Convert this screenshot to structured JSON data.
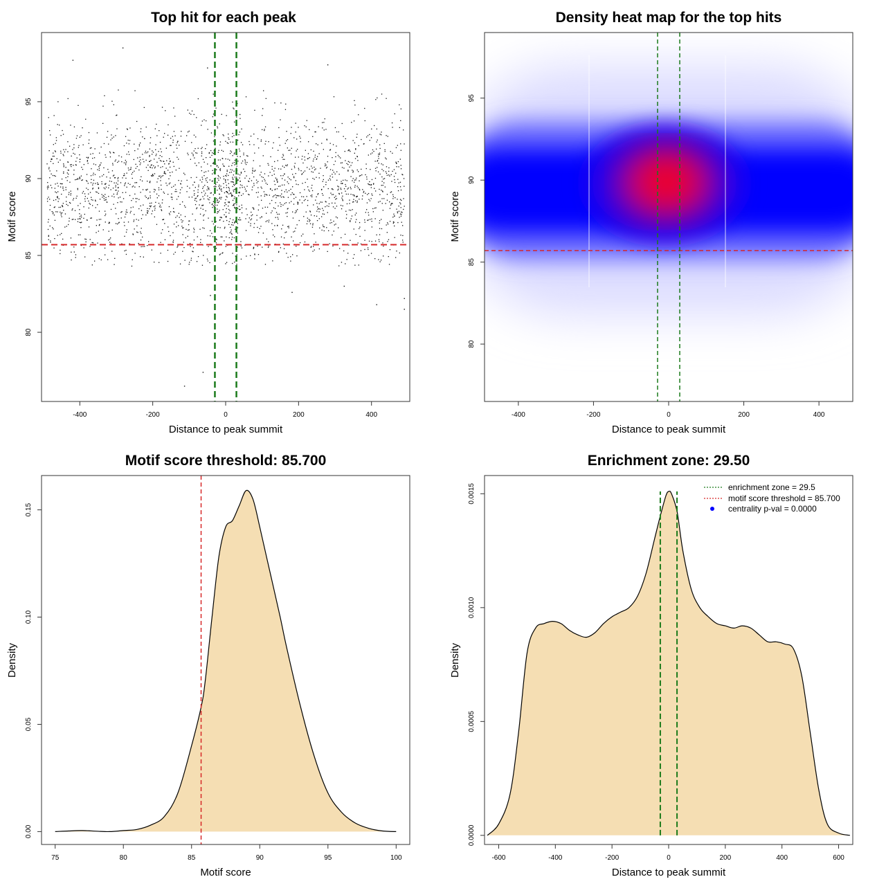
{
  "chart_data": [
    {
      "type": "scatter",
      "title": "Top hit for each peak",
      "xlabel": "Distance to peak summit",
      "ylabel": "Motif score",
      "xlim": [
        -505,
        505
      ],
      "ylim": [
        75.5,
        99.5
      ],
      "xticks": [
        -400,
        -200,
        0,
        200,
        400
      ],
      "yticks": [
        80,
        85,
        90,
        95
      ],
      "n_points": 2400,
      "x_range": [
        -490,
        490
      ],
      "y_center": 89.2,
      "y_spread": 2.4,
      "outliers": [
        [
          -113,
          76.5
        ],
        [
          -62,
          77.4
        ],
        [
          -42,
          82.4
        ],
        [
          -282,
          98.5
        ],
        [
          -419,
          97.7
        ],
        [
          -50,
          97.2
        ],
        [
          280,
          97.4
        ],
        [
          414,
          81.8
        ],
        [
          490,
          81.5
        ],
        [
          490,
          82.2
        ],
        [
          182,
          82.6
        ],
        [
          325,
          83.0
        ]
      ],
      "threshold_line": {
        "y": 85.7,
        "color": "#d62728"
      },
      "zone_lines": {
        "x": [
          -29.5,
          29.5
        ],
        "color": "#1a7a1a"
      }
    },
    {
      "type": "heatmap",
      "title": "Density heat map for the top hits",
      "xlabel": "Distance to peak summit",
      "ylabel": "Motif score",
      "xlim": [
        -490,
        490
      ],
      "ylim": [
        76.5,
        99
      ],
      "xticks": [
        -400,
        -200,
        0,
        200,
        400
      ],
      "yticks": [
        80,
        85,
        90,
        95
      ],
      "colors": {
        "low": "#ffffff",
        "mid": "#0000ff",
        "high": "#ff0000"
      },
      "hotspot": {
        "x": 0,
        "y": 89.6
      },
      "threshold_line": {
        "y": 85.7,
        "color": "#d62728"
      },
      "zone_lines": {
        "x": [
          -29.5,
          29.5
        ],
        "color": "#1a7a1a"
      }
    },
    {
      "type": "area",
      "title": "Motif score threshold: 85.700",
      "xlabel": "Motif score",
      "ylabel": "Density",
      "xlim": [
        74,
        101
      ],
      "ylim": [
        -0.006,
        0.166
      ],
      "xticks": [
        75,
        80,
        85,
        90,
        95,
        100
      ],
      "yticks": [
        0.0,
        0.05,
        0.1,
        0.15
      ],
      "ytick_labels": [
        "0.00",
        "0.05",
        "0.10",
        "0.15"
      ],
      "x": [
        75,
        76,
        77,
        78,
        79,
        80,
        81,
        82,
        83,
        84,
        85,
        85.7,
        86,
        86.5,
        87,
        87.5,
        88,
        88.5,
        89,
        89.5,
        90,
        90.5,
        91,
        91.5,
        92,
        93,
        94,
        95,
        96,
        97,
        98,
        99,
        100
      ],
      "y": [
        0.0,
        0.0003,
        0.0005,
        0.0002,
        0.0,
        0.0005,
        0.001,
        0.003,
        0.007,
        0.018,
        0.04,
        0.058,
        0.07,
        0.1,
        0.128,
        0.142,
        0.145,
        0.152,
        0.159,
        0.155,
        0.142,
        0.128,
        0.114,
        0.1,
        0.085,
        0.058,
        0.035,
        0.018,
        0.009,
        0.004,
        0.0015,
        0.0003,
        0.0
      ],
      "fill": "#f5deb3",
      "threshold_line": {
        "x": 85.7,
        "color": "#d62728"
      }
    },
    {
      "type": "area",
      "title": "Enrichment zone: 29.50",
      "xlabel": "Distance to peak summit",
      "ylabel": "Density",
      "xlim": [
        -650,
        650
      ],
      "ylim": [
        -4e-05,
        0.00158
      ],
      "xticks": [
        -600,
        -400,
        -200,
        0,
        200,
        400,
        600
      ],
      "yticks": [
        0.0,
        0.0005,
        0.001,
        0.0015
      ],
      "ytick_labels": [
        "0.0000",
        "0.0005",
        "0.0010",
        "0.0015"
      ],
      "x": [
        -640,
        -600,
        -560,
        -530,
        -500,
        -470,
        -440,
        -410,
        -380,
        -350,
        -320,
        -290,
        -260,
        -230,
        -200,
        -170,
        -140,
        -110,
        -80,
        -50,
        -30,
        -10,
        0,
        10,
        30,
        50,
        80,
        110,
        140,
        170,
        200,
        230,
        260,
        290,
        320,
        350,
        380,
        410,
        440,
        470,
        500,
        530,
        560,
        600,
        640
      ],
      "y": [
        0.0,
        5e-05,
        0.00018,
        0.00045,
        0.0008,
        0.00091,
        0.00093,
        0.00094,
        0.00093,
        0.0009,
        0.00088,
        0.00087,
        0.00089,
        0.00093,
        0.00096,
        0.00098,
        0.001,
        0.00105,
        0.00115,
        0.0013,
        0.0014,
        0.00149,
        0.00151,
        0.0015,
        0.00142,
        0.00125,
        0.00108,
        0.001,
        0.00096,
        0.00093,
        0.00092,
        0.00091,
        0.00092,
        0.00091,
        0.00088,
        0.00085,
        0.00085,
        0.00084,
        0.00082,
        0.0007,
        0.00045,
        0.0002,
        5e-05,
        1e-05,
        0.0
      ],
      "fill": "#f5deb3",
      "zone_lines": {
        "x": [
          -29.5,
          29.5
        ],
        "color": "#1a7a1a"
      },
      "legend": {
        "placement": "top-right",
        "entries": [
          {
            "label": "enrichment zone = 29.5",
            "style": "dotted",
            "color": "#1a7a1a"
          },
          {
            "label": "motif score threshold = 85.700",
            "style": "dotted",
            "color": "#d62728"
          },
          {
            "label": "centrality p-val = 0.0000",
            "style": "point",
            "color": "#0000ff"
          }
        ]
      }
    }
  ]
}
